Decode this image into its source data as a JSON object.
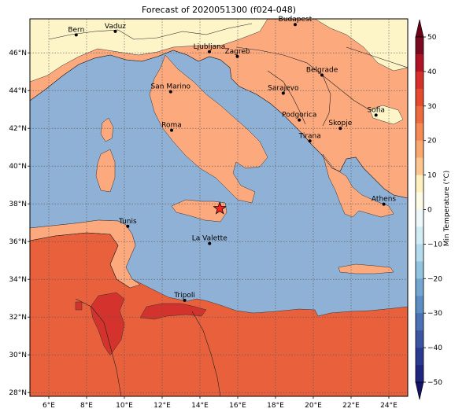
{
  "title": "Forecast of 2020051300 (f024-048)",
  "map": {
    "lon_range": [
      5,
      25
    ],
    "lat_range": [
      27.8,
      47.8
    ],
    "x_ticks": [
      {
        "lon": 6,
        "label": "6°E"
      },
      {
        "lon": 8,
        "label": "8°E"
      },
      {
        "lon": 10,
        "label": "10°E"
      },
      {
        "lon": 12,
        "label": "12°E"
      },
      {
        "lon": 14,
        "label": "14°E"
      },
      {
        "lon": 16,
        "label": "16°E"
      },
      {
        "lon": 18,
        "label": "18°E"
      },
      {
        "lon": 20,
        "label": "20°E"
      },
      {
        "lon": 22,
        "label": "22°E"
      },
      {
        "lon": 24,
        "label": "24°E"
      }
    ],
    "y_ticks": [
      {
        "lat": 28,
        "label": "28°N"
      },
      {
        "lat": 30,
        "label": "30°N"
      },
      {
        "lat": 32,
        "label": "32°N"
      },
      {
        "lat": 34,
        "label": "34°N"
      },
      {
        "lat": 36,
        "label": "36°N"
      },
      {
        "lat": 38,
        "label": "38°N"
      },
      {
        "lat": 40,
        "label": "40°N"
      },
      {
        "lat": 42,
        "label": "42°N"
      },
      {
        "lat": 44,
        "label": "44°N"
      },
      {
        "lat": 46,
        "label": "46°N"
      }
    ],
    "grid": true,
    "cities": [
      {
        "name": "Bern",
        "lon": 7.45,
        "lat": 46.95
      },
      {
        "name": "Vaduz",
        "lon": 9.52,
        "lat": 47.14
      },
      {
        "name": "Budapest",
        "lon": 19.04,
        "lat": 47.5
      },
      {
        "name": "Ljubljana",
        "lon": 14.5,
        "lat": 46.06
      },
      {
        "name": "Zagreb",
        "lon": 15.98,
        "lat": 45.81
      },
      {
        "name": "Belgrade",
        "lon": 20.46,
        "lat": 44.82
      },
      {
        "name": "San Marino",
        "lon": 12.45,
        "lat": 43.94
      },
      {
        "name": "Sarajevo",
        "lon": 18.41,
        "lat": 43.86
      },
      {
        "name": "Sofia",
        "lon": 23.32,
        "lat": 42.7
      },
      {
        "name": "Podgorica",
        "lon": 19.26,
        "lat": 42.44
      },
      {
        "name": "Skopje",
        "lon": 21.43,
        "lat": 42.0
      },
      {
        "name": "Roma",
        "lon": 12.5,
        "lat": 41.9
      },
      {
        "name": "Tirana",
        "lon": 19.82,
        "lat": 41.33
      },
      {
        "name": "Athens",
        "lon": 23.73,
        "lat": 37.98
      },
      {
        "name": "Tunis",
        "lon": 10.18,
        "lat": 36.81
      },
      {
        "name": "La Valette",
        "lon": 14.51,
        "lat": 35.9
      },
      {
        "name": "Tripoli",
        "lon": 13.19,
        "lat": 32.89
      }
    ],
    "star_marker": {
      "lon": 15.05,
      "lat": 37.75,
      "color": "#ff2020"
    },
    "colors": {
      "sea": "#8fb1d6",
      "land_15_20": "#fca97e",
      "land_20_25": "#f28258",
      "land_25_30": "#e8603c",
      "land_30_35": "#d4332d",
      "land_5_10": "#fdf4c8",
      "grid": "#555555"
    }
  },
  "colorbar": {
    "label": "Min Temperature (°C)",
    "ticks": [
      "50",
      "40",
      "30",
      "20",
      "10",
      "0",
      "−10",
      "−20",
      "−30",
      "−40",
      "−50"
    ],
    "levels": [
      {
        "from": 45,
        "to": 50,
        "color": "#7a0a22"
      },
      {
        "from": 40,
        "to": 45,
        "color": "#b01226"
      },
      {
        "from": 35,
        "to": 40,
        "color": "#d7302b"
      },
      {
        "from": 30,
        "to": 35,
        "color": "#e34a2e"
      },
      {
        "from": 25,
        "to": 30,
        "color": "#ed6a3f"
      },
      {
        "from": 20,
        "to": 25,
        "color": "#f58a55"
      },
      {
        "from": 15,
        "to": 20,
        "color": "#fba870"
      },
      {
        "from": 10,
        "to": 15,
        "color": "#fdc68e"
      },
      {
        "from": 5,
        "to": 10,
        "color": "#fef0bf"
      },
      {
        "from": 0,
        "to": 5,
        "color": "#fdfbe6"
      },
      {
        "from": -5,
        "to": 0,
        "color": "#eef7fa"
      },
      {
        "from": -10,
        "to": -5,
        "color": "#d2ecf4"
      },
      {
        "from": -15,
        "to": -10,
        "color": "#b4dbec"
      },
      {
        "from": -20,
        "to": -15,
        "color": "#92c3df"
      },
      {
        "from": -25,
        "to": -20,
        "color": "#73a7d0"
      },
      {
        "from": -30,
        "to": -25,
        "color": "#5b8fc4"
      },
      {
        "from": -35,
        "to": -30,
        "color": "#4a72b4"
      },
      {
        "from": -40,
        "to": -35,
        "color": "#3b55a2"
      },
      {
        "from": -45,
        "to": -40,
        "color": "#2b3a91"
      },
      {
        "from": -50,
        "to": -45,
        "color": "#1f2680"
      }
    ],
    "extend_top_color": "#6b0019",
    "extend_bottom_color": "#141466"
  }
}
